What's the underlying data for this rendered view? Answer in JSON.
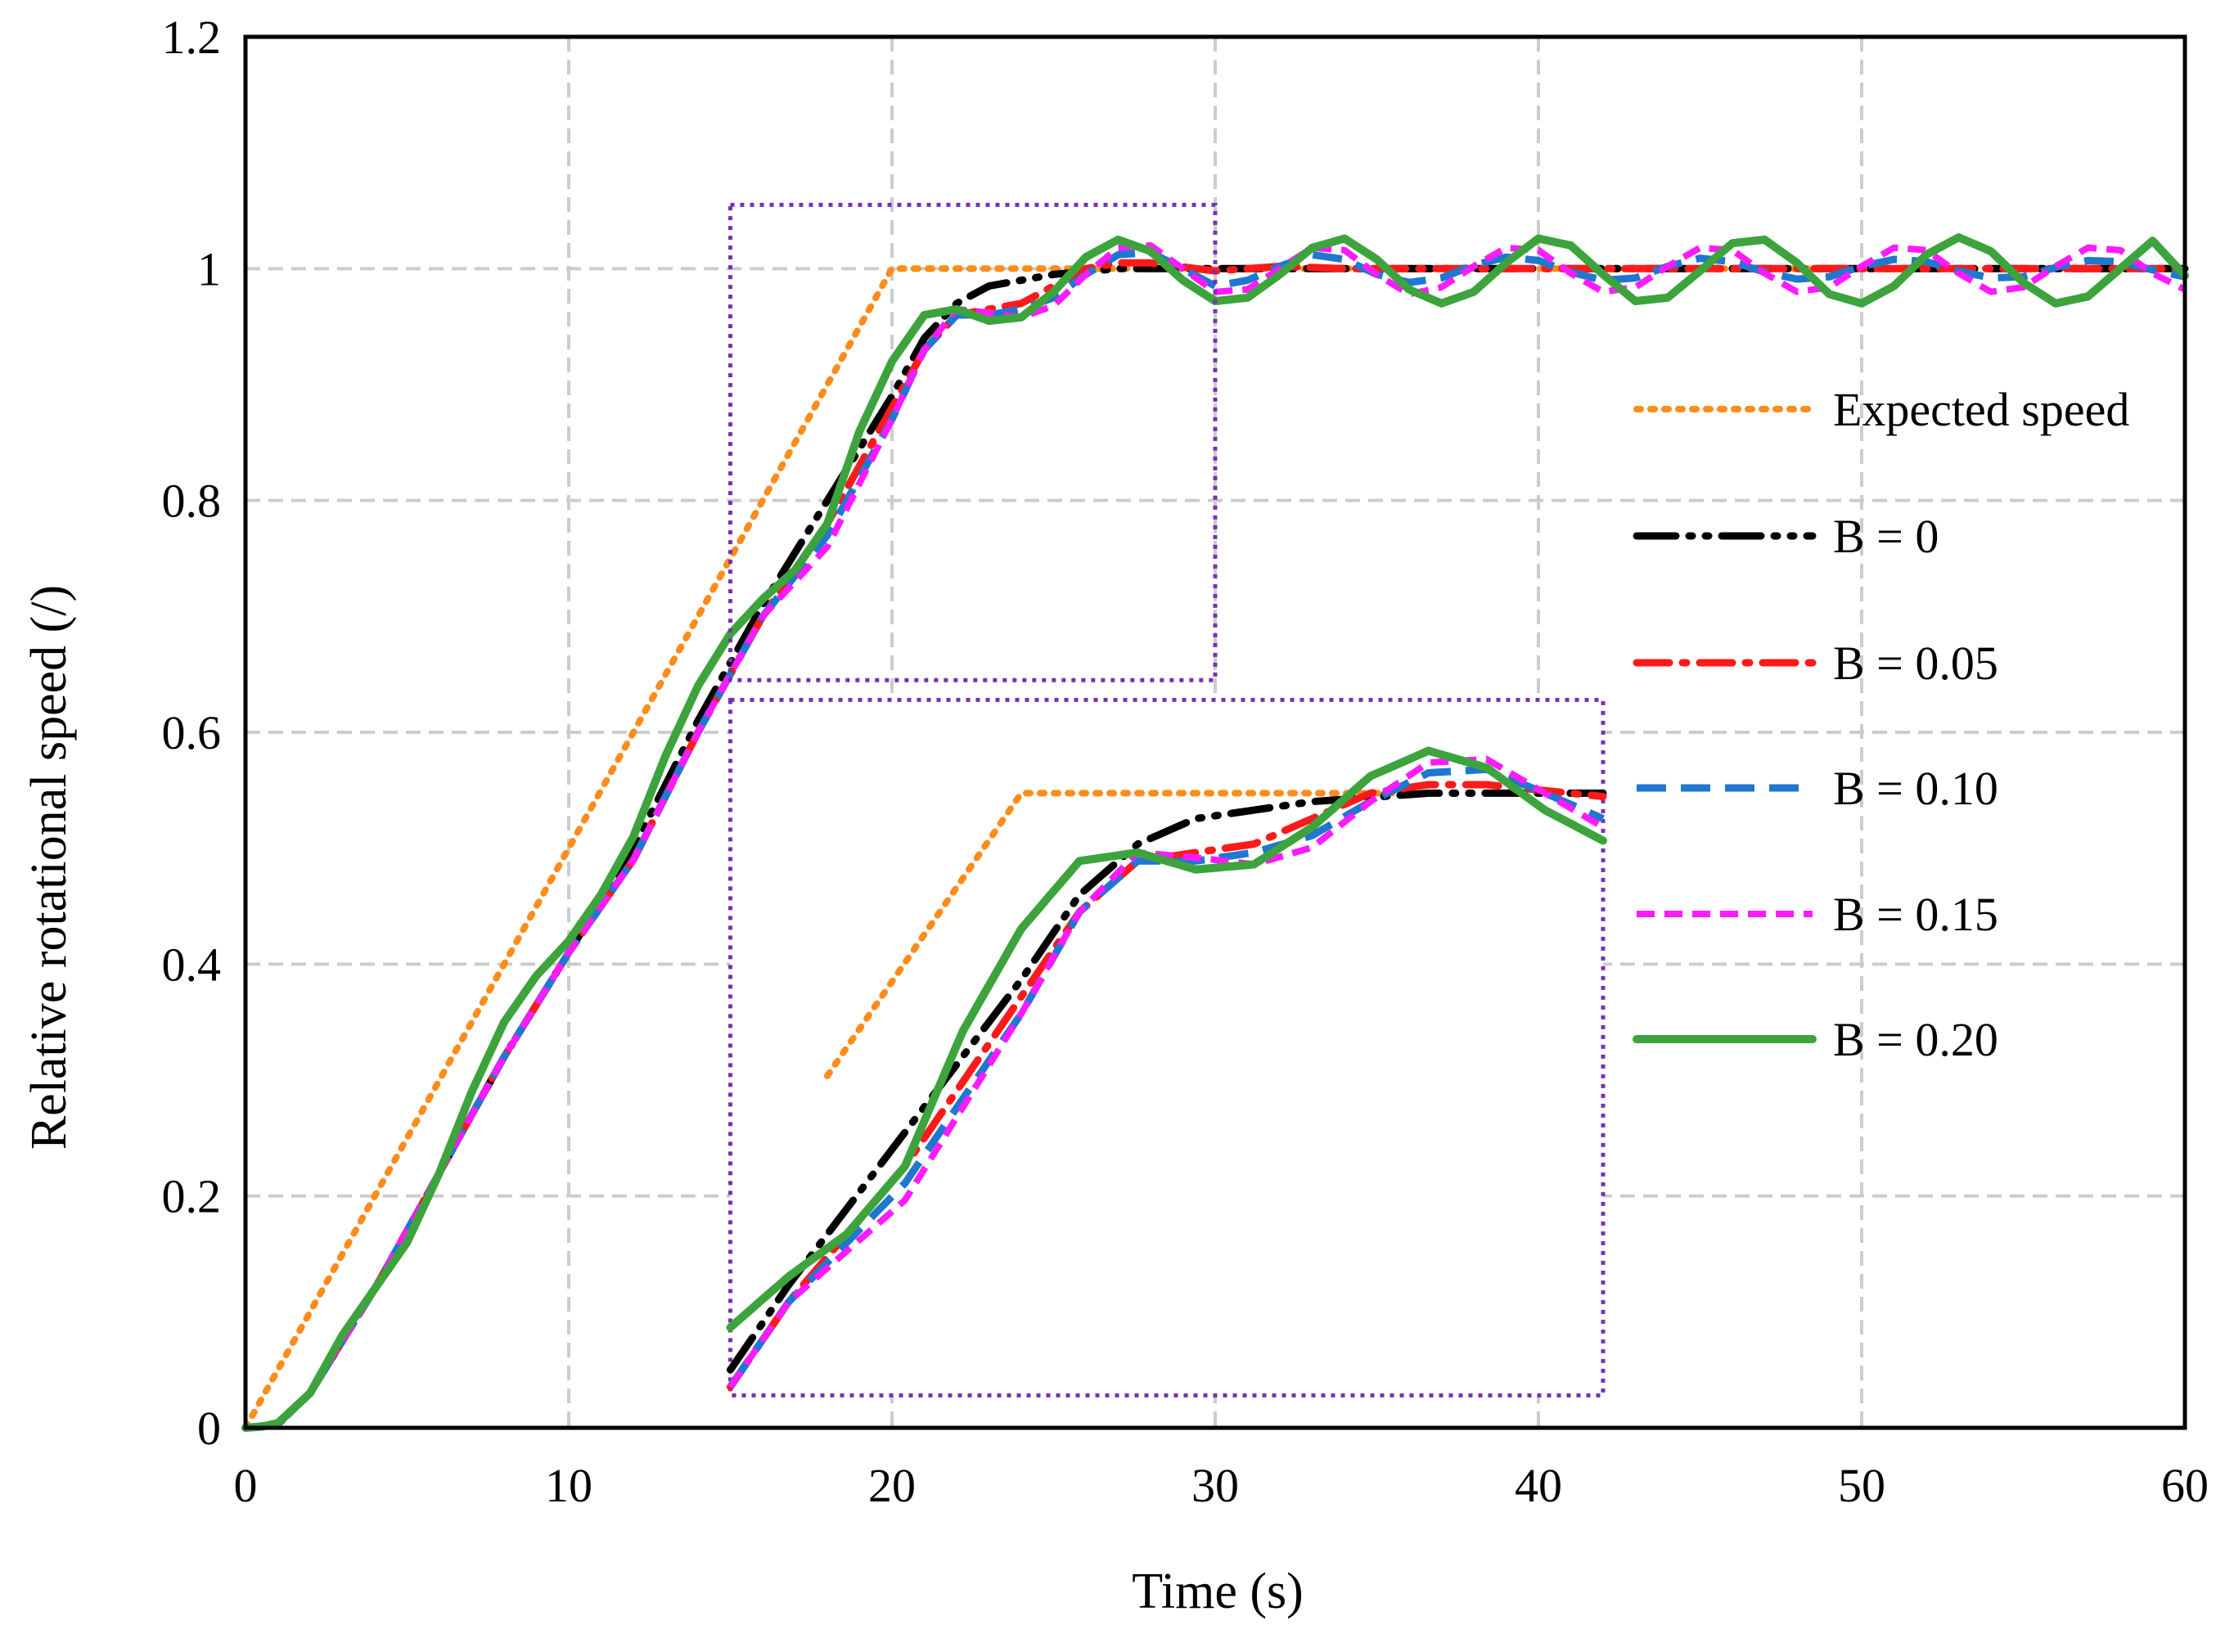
{
  "chart_data": {
    "type": "line",
    "xlabel": "Time (s)",
    "ylabel": "Relative rotational speed (/)",
    "xlim": [
      0,
      60
    ],
    "ylim": [
      0,
      1.2
    ],
    "xticks": [
      0,
      10,
      20,
      30,
      40,
      50,
      60
    ],
    "yticks": [
      0,
      0.2,
      0.4,
      0.6,
      0.8,
      1,
      1.2
    ],
    "xtick_labels": [
      "0",
      "10",
      "20",
      "30",
      "40",
      "50",
      "60"
    ],
    "ytick_labels": [
      "0",
      "0.2",
      "0.4",
      "0.6",
      "0.8",
      "1",
      "1.2"
    ],
    "grid": true,
    "legend_position": "right",
    "series": [
      {
        "name": "Expected speed",
        "color": "#FF8C1A",
        "style": "dotted",
        "x": [
          0,
          20,
          60
        ],
        "y": [
          0,
          1,
          1
        ]
      },
      {
        "name": "B = 0",
        "color": "#000000",
        "style": "dash-dot-dot",
        "x": [
          0,
          1,
          2,
          4,
          6,
          8,
          10,
          12,
          14,
          16,
          18,
          20,
          21,
          22,
          23,
          25,
          27,
          30,
          35,
          40,
          45,
          50,
          55,
          60
        ],
        "y": [
          0,
          0.003,
          0.03,
          0.12,
          0.22,
          0.32,
          0.41,
          0.5,
          0.61,
          0.71,
          0.8,
          0.89,
          0.94,
          0.97,
          0.985,
          0.995,
          1.0,
          1.0,
          1.0,
          1.0,
          1.0,
          1.0,
          1.0,
          1.0
        ]
      },
      {
        "name": "B = 0.05",
        "color": "#FF1A1A",
        "style": "dash-dot",
        "x": [
          0,
          1,
          2,
          4,
          6,
          8,
          10,
          12,
          14,
          16,
          18,
          20,
          21,
          22,
          23,
          24,
          25,
          26,
          27,
          28,
          30,
          32,
          34,
          36,
          38,
          40,
          42,
          44,
          46,
          48,
          50,
          52,
          54,
          56,
          58,
          60
        ],
        "y": [
          0,
          0.003,
          0.03,
          0.12,
          0.22,
          0.32,
          0.41,
          0.49,
          0.6,
          0.7,
          0.78,
          0.88,
          0.93,
          0.96,
          0.965,
          0.97,
          0.985,
          1.0,
          1.005,
          1.005,
          0.998,
          1.002,
          1.0,
          1.0,
          1.0,
          1.0,
          1.0,
          1.0,
          1.0,
          1.0,
          1.0,
          1.0,
          1.0,
          1.0,
          1.0,
          1.0
        ]
      },
      {
        "name": "B = 0.10",
        "color": "#1F77D0",
        "style": "dashed",
        "x": [
          0,
          1,
          2,
          4,
          6,
          8,
          10,
          12,
          14,
          16,
          18,
          20,
          21,
          22,
          23,
          24,
          25,
          26,
          27,
          28,
          29,
          30,
          31,
          32,
          33,
          34,
          35,
          36,
          37,
          38,
          39,
          40,
          41,
          42,
          43,
          44,
          45,
          46,
          47,
          48,
          49,
          50,
          51,
          52,
          53,
          54,
          55,
          56,
          57,
          58,
          59,
          60
        ],
        "y": [
          0,
          0.003,
          0.03,
          0.12,
          0.22,
          0.32,
          0.41,
          0.49,
          0.6,
          0.7,
          0.77,
          0.87,
          0.93,
          0.96,
          0.96,
          0.965,
          0.975,
          0.995,
          1.012,
          1.014,
          1.0,
          0.985,
          0.99,
          1.002,
          1.012,
          1.008,
          0.995,
          0.988,
          0.992,
          1.003,
          1.01,
          1.007,
          0.997,
          0.99,
          0.992,
          1.002,
          1.009,
          1.006,
          0.997,
          0.991,
          0.993,
          1.002,
          1.008,
          1.006,
          0.998,
          0.992,
          0.993,
          1.001,
          1.007,
          1.006,
          0.999,
          0.993
        ]
      },
      {
        "name": "B = 0.15",
        "color": "#FF1AFF",
        "style": "short-dashed",
        "x": [
          0,
          1,
          2,
          4,
          6,
          8,
          10,
          12,
          14,
          16,
          18,
          20,
          21,
          22,
          23,
          24,
          25,
          26,
          27,
          28,
          29,
          30,
          31,
          32,
          33,
          34,
          35,
          36,
          37,
          38,
          39,
          40,
          41,
          42,
          43,
          44,
          45,
          46,
          47,
          48,
          49,
          50,
          51,
          52,
          53,
          54,
          55,
          56,
          57,
          58,
          59,
          60
        ],
        "y": [
          0,
          0.003,
          0.03,
          0.12,
          0.22,
          0.32,
          0.41,
          0.49,
          0.6,
          0.7,
          0.76,
          0.87,
          0.93,
          0.965,
          0.962,
          0.958,
          0.968,
          0.995,
          1.018,
          1.02,
          1.0,
          0.98,
          0.982,
          1.0,
          1.018,
          1.016,
          0.995,
          0.978,
          0.984,
          1.002,
          1.018,
          1.016,
          0.996,
          0.98,
          0.984,
          1.002,
          1.018,
          1.016,
          0.996,
          0.98,
          0.984,
          1.002,
          1.018,
          1.016,
          0.996,
          0.98,
          0.984,
          1.002,
          1.018,
          1.016,
          0.996,
          0.982
        ]
      },
      {
        "name": "B = 0.20",
        "color": "#3DA33D",
        "style": "solid",
        "x": [
          0,
          0.5,
          1,
          2,
          3,
          4,
          5,
          6,
          7,
          8,
          9,
          10,
          11,
          12,
          13,
          14,
          15,
          16,
          17,
          18,
          19,
          20,
          21,
          22,
          23,
          24,
          25,
          26,
          27,
          28,
          29,
          30,
          31,
          32,
          33,
          34,
          35,
          36,
          37,
          38,
          39,
          40,
          41,
          42,
          43,
          44,
          45,
          46,
          47,
          48,
          49,
          50,
          51,
          52,
          53,
          54,
          55,
          56,
          57,
          58,
          59,
          60
        ],
        "y": [
          0,
          0.001,
          0.004,
          0.03,
          0.08,
          0.12,
          0.16,
          0.22,
          0.29,
          0.35,
          0.39,
          0.42,
          0.46,
          0.51,
          0.58,
          0.64,
          0.685,
          0.715,
          0.74,
          0.78,
          0.86,
          0.92,
          0.96,
          0.965,
          0.955,
          0.958,
          0.98,
          1.01,
          1.025,
          1.015,
          0.99,
          0.972,
          0.975,
          0.995,
          1.018,
          1.026,
          1.008,
          0.982,
          0.97,
          0.98,
          1.005,
          1.026,
          1.02,
          0.995,
          0.972,
          0.975,
          0.998,
          1.022,
          1.025,
          1.005,
          0.978,
          0.97,
          0.985,
          1.012,
          1.027,
          1.015,
          0.988,
          0.97,
          0.976,
          1.0,
          1.024,
          0.994
        ]
      }
    ],
    "annotations": [
      {
        "type": "dotted-rectangle",
        "label": "zoom source region",
        "color": "#7B2FB5",
        "x_range": [
          15,
          30
        ],
        "y_range": [
          0.645,
          1.055
        ]
      },
      {
        "type": "dotted-rectangle",
        "label": "zoomed inset",
        "color": "#7B2FB5",
        "x_range": [
          15,
          42
        ],
        "y_range": [
          0.028,
          0.628
        ]
      }
    ]
  }
}
